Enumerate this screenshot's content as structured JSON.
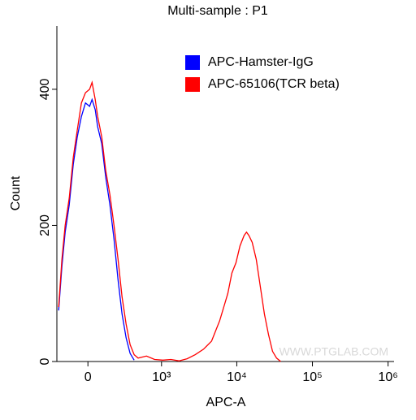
{
  "chart_data": {
    "type": "line",
    "title": "Multi-sample : P1",
    "x_label": "APC-A",
    "y_label": "Count",
    "watermark": "WWW.PTGLAB.COM",
    "xscale": "biexponential",
    "xlim": [
      -235,
      1200000
    ],
    "xticks": [
      0,
      {
        "value": 1000,
        "label": "10³"
      },
      {
        "value": 10000,
        "label": "10⁴"
      },
      {
        "value": 100000,
        "label": "10⁵"
      },
      {
        "value": 1000000,
        "label": "10⁶"
      }
    ],
    "ylim": [
      0,
      493
    ],
    "yticks": [
      0,
      200,
      400
    ],
    "legend": "upper right",
    "series": [
      {
        "name": "APC-Hamster-IgG",
        "color": "#0000ff",
        "x": [
          -218,
          -189,
          -161,
          -129,
          -99,
          -71,
          -43,
          -16,
          11,
          27,
          48,
          65,
          93,
          123,
          155,
          189,
          226,
          266,
          310,
          359,
          413
        ],
        "values": [
          75,
          140,
          190,
          230,
          290,
          330,
          360,
          380,
          375,
          385,
          370,
          345,
          320,
          270,
          230,
          180,
          120,
          70,
          35,
          12,
          2
        ]
      },
      {
        "name": "APC-65106(TCR beta)",
        "color": "#ff0000",
        "x": [
          -218,
          -189,
          -161,
          -129,
          -99,
          -71,
          -43,
          -16,
          11,
          27,
          48,
          65,
          93,
          123,
          155,
          189,
          226,
          266,
          310,
          359,
          413,
          473,
          622,
          805,
          1040,
          1336,
          1716,
          2201,
          2822,
          3618,
          4636,
          5245,
          5937,
          6722,
          7609,
          8610,
          9742,
          11032,
          12487,
          13450,
          14480,
          15990,
          18100,
          20490,
          23190,
          26240,
          29700,
          33600,
          38040
        ],
        "values": [
          80,
          150,
          200,
          240,
          300,
          340,
          380,
          395,
          400,
          410,
          385,
          360,
          330,
          280,
          245,
          200,
          150,
          95,
          55,
          25,
          10,
          5,
          8,
          3,
          2,
          3,
          1,
          4,
          10,
          18,
          30,
          45,
          60,
          80,
          100,
          130,
          145,
          170,
          185,
          190,
          185,
          175,
          150,
          110,
          70,
          40,
          15,
          5,
          0
        ]
      }
    ]
  }
}
